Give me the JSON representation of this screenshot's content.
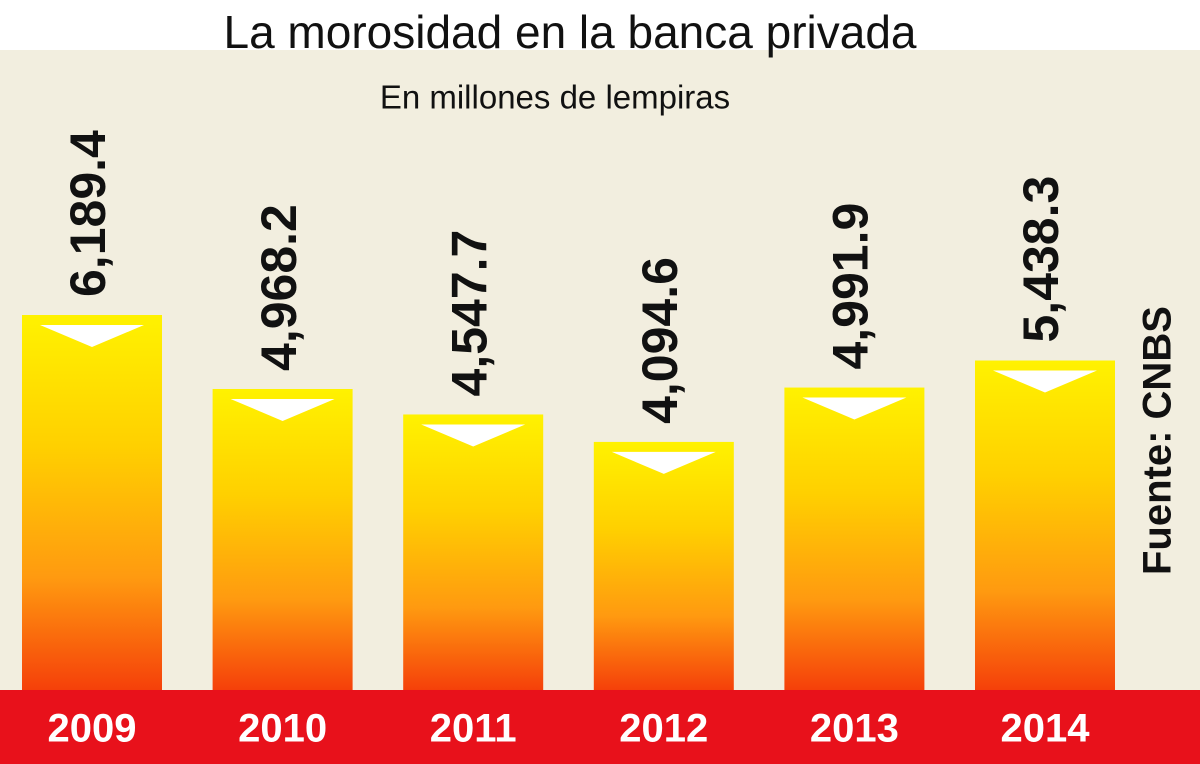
{
  "chart_data": {
    "type": "bar",
    "title": "La morosidad en la banca privada",
    "subtitle": "En millones de lempiras",
    "source": "Fuente: CNBS",
    "categories": [
      "2009",
      "2010",
      "2011",
      "2012",
      "2013",
      "2014"
    ],
    "values": [
      6189.4,
      4968.2,
      4547.7,
      4094.6,
      4991.9,
      5438.3
    ],
    "value_labels": [
      "6,189.4",
      "4,968.2",
      "4,547.7",
      "4,094.6",
      "4,991.9",
      "5,438.3"
    ]
  }
}
